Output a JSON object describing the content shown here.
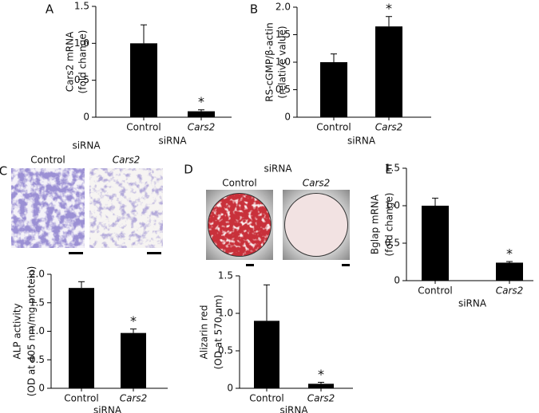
{
  "chart_data": [
    {
      "type": "bar",
      "panel": "A",
      "ylabel": [
        "Cars2 mRNA",
        "(fold change)"
      ],
      "xlabel": "siRNA",
      "categories": [
        "Control",
        "Cars2"
      ],
      "values": [
        1.0,
        0.08
      ],
      "errors": [
        0.25,
        0.02
      ],
      "significance": [
        null,
        "*"
      ],
      "color": "#000000",
      "ylim": [
        0,
        1.5
      ],
      "yticks": [
        0,
        0.5,
        {
          "value": 1,
          "label": "1.0"
        },
        1.5
      ]
    },
    {
      "type": "bar",
      "panel": "B",
      "ylabel": [
        "RS-cGMP/β-actin",
        "(relative value)"
      ],
      "xlabel": "siRNA",
      "categories": [
        "Control",
        "Cars2"
      ],
      "values": [
        1.0,
        1.65
      ],
      "errors": [
        0.15,
        0.18
      ],
      "significance": [
        null,
        "*"
      ],
      "color": "#000000",
      "ylim": [
        0,
        2
      ],
      "yticks": [
        0,
        0.5,
        {
          "value": 1,
          "label": "1.0"
        },
        1.5,
        {
          "value": 2,
          "label": "2.0"
        }
      ]
    },
    {
      "type": "bar",
      "panel": "C",
      "image_header": "siRNA",
      "image_labels": [
        "Control",
        "Cars2"
      ],
      "ylabel": [
        "ALP activity",
        "(OD at 405 nm/mg protein)"
      ],
      "xlabel": "siRNA",
      "categories": [
        "Control",
        "Cars2"
      ],
      "values": [
        1.76,
        0.97
      ],
      "errors": [
        0.11,
        0.07
      ],
      "significance": [
        null,
        "*"
      ],
      "color": "#000000",
      "ylim": [
        0,
        2
      ],
      "yticks": [
        0,
        0.5,
        {
          "value": 1,
          "label": "1.0"
        },
        1.5,
        {
          "value": 2,
          "label": "2.0"
        }
      ]
    },
    {
      "type": "bar",
      "panel": "D",
      "image_header": "siRNA",
      "image_labels": [
        "Control",
        "Cars2"
      ],
      "ylabel": [
        "Alizarin red",
        "(OD at 570 nm)"
      ],
      "xlabel": "siRNA",
      "categories": [
        "Control",
        "Cars2"
      ],
      "values": [
        0.9,
        0.06
      ],
      "errors": [
        0.48,
        0.02
      ],
      "significance": [
        null,
        "*"
      ],
      "color": "#000000",
      "ylim": [
        0,
        1.5
      ],
      "yticks": [
        0,
        0.5,
        {
          "value": 1,
          "label": "1.0"
        },
        1.5
      ]
    },
    {
      "type": "bar",
      "panel": "E",
      "ylabel": [
        "Bglap mRNA",
        "(fold change)"
      ],
      "xlabel": "siRNA",
      "categories": [
        "Control",
        "Cars2"
      ],
      "values": [
        1.0,
        0.24
      ],
      "errors": [
        0.1,
        0.015
      ],
      "significance": [
        null,
        "*"
      ],
      "color": "#000000",
      "ylim": [
        0,
        1.5
      ],
      "yticks": [
        0,
        0.5,
        {
          "value": 1,
          "label": "1.0"
        },
        1.5
      ]
    }
  ]
}
